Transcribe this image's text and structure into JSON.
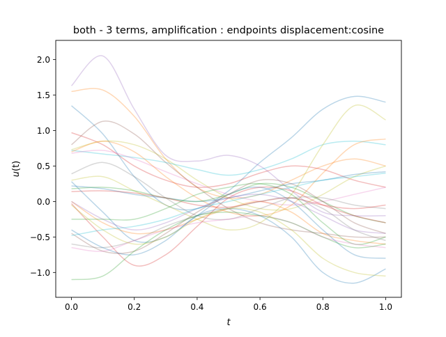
{
  "chart_data": {
    "type": "line",
    "title": "both - 3 terms, amplification : endpoints displacement:cosine",
    "xlabel_base": "t",
    "ylabel_base": "u",
    "ylabel_arg": "(t)",
    "xlim": [
      -0.05,
      1.05
    ],
    "ylim": [
      -1.35,
      2.27
    ],
    "xticks": [
      0.0,
      0.2,
      0.4,
      0.6,
      0.8,
      1.0
    ],
    "xtick_labels": [
      "0.0",
      "0.2",
      "0.4",
      "0.6",
      "0.8",
      "1.0"
    ],
    "yticks": [
      -1.0,
      -0.5,
      0.0,
      0.5,
      1.0,
      1.5,
      2.0
    ],
    "ytick_labels": [
      "−1.0",
      "−0.5",
      "0.0",
      "0.5",
      "1.0",
      "1.5",
      "2.0"
    ],
    "grid": false,
    "legend": "none",
    "line_alpha": 0.3,
    "x": [
      0.0,
      0.1,
      0.2,
      0.3,
      0.4,
      0.5,
      0.6,
      0.7,
      0.8,
      0.9,
      1.0
    ],
    "series": [
      {
        "color": "#1f77b4",
        "values": [
          1.35,
          0.95,
          0.35,
          -0.05,
          -0.1,
          0.15,
          0.55,
          0.9,
          1.3,
          1.48,
          1.4
        ]
      },
      {
        "color": "#ff7f0e",
        "values": [
          1.55,
          1.57,
          1.2,
          0.6,
          0.2,
          0.05,
          0.1,
          0.3,
          0.5,
          0.6,
          0.5
        ]
      },
      {
        "color": "#9467bd",
        "values": [
          1.63,
          2.05,
          1.3,
          0.65,
          0.57,
          0.65,
          0.5,
          0.15,
          -0.15,
          -0.2,
          -0.2
        ]
      },
      {
        "color": "#d62728",
        "values": [
          0.97,
          0.8,
          0.5,
          0.3,
          0.2,
          0.25,
          0.4,
          0.5,
          0.45,
          0.3,
          0.2
        ]
      },
      {
        "color": "#8c564b",
        "values": [
          0.8,
          1.13,
          0.95,
          0.55,
          0.2,
          -0.1,
          -0.3,
          -0.4,
          -0.45,
          -0.5,
          -0.5
        ]
      },
      {
        "color": "#bcbd22",
        "values": [
          0.73,
          0.85,
          0.8,
          0.6,
          0.3,
          0.05,
          -0.1,
          -0.1,
          0.1,
          0.35,
          0.5
        ]
      },
      {
        "color": "#17becf",
        "values": [
          0.72,
          0.67,
          0.62,
          0.55,
          0.45,
          0.37,
          0.45,
          0.6,
          0.8,
          0.85,
          0.8
        ]
      },
      {
        "color": "#e377c2",
        "values": [
          0.68,
          0.72,
          0.6,
          0.42,
          0.25,
          0.1,
          0.0,
          -0.05,
          0.0,
          0.1,
          0.2
        ]
      },
      {
        "color": "#ff7f0e",
        "values": [
          0.7,
          0.85,
          0.7,
          0.35,
          0.05,
          -0.15,
          -0.2,
          -0.05,
          0.4,
          0.8,
          0.88
        ]
      },
      {
        "color": "#7f7f7f",
        "values": [
          0.39,
          0.55,
          0.35,
          0.05,
          -0.2,
          -0.25,
          -0.1,
          0.05,
          0.05,
          -0.05,
          -0.1
        ]
      },
      {
        "color": "#bcbd22",
        "values": [
          0.3,
          0.35,
          0.15,
          -0.05,
          -0.25,
          -0.4,
          -0.3,
          0.1,
          0.8,
          1.35,
          1.15
        ]
      },
      {
        "color": "#1f77b4",
        "values": [
          0.22,
          0.18,
          0.1,
          0.05,
          0.0,
          0.05,
          0.15,
          0.25,
          0.3,
          0.38,
          0.42
        ]
      },
      {
        "color": "#2ca02c",
        "values": [
          0.18,
          0.2,
          0.15,
          0.05,
          0.0,
          0.1,
          0.25,
          0.2,
          0.0,
          -0.2,
          -0.3
        ]
      },
      {
        "color": "#d62728",
        "values": [
          0.14,
          0.15,
          0.12,
          0.05,
          -0.05,
          -0.08,
          0.0,
          0.05,
          -0.05,
          -0.1,
          -0.05
        ]
      },
      {
        "color": "#1f77b4",
        "values": [
          0.28,
          -0.15,
          -0.55,
          -0.5,
          -0.2,
          0.1,
          0.2,
          0.0,
          -0.4,
          -0.75,
          -0.8
        ]
      },
      {
        "color": "#ff7f0e",
        "values": [
          0.0,
          -0.3,
          -0.45,
          -0.4,
          -0.25,
          -0.1,
          0.0,
          -0.15,
          -0.45,
          -0.55,
          -0.6
        ]
      },
      {
        "color": "#9467bd",
        "values": [
          0.0,
          -0.25,
          -0.4,
          -0.3,
          -0.1,
          0.05,
          0.1,
          0.0,
          -0.2,
          -0.4,
          -0.45
        ]
      },
      {
        "color": "#2ca02c",
        "values": [
          -0.25,
          -0.25,
          -0.25,
          -0.1,
          0.1,
          0.2,
          0.25,
          0.1,
          -0.3,
          -0.6,
          -0.5
        ]
      },
      {
        "color": "#d62728",
        "values": [
          -0.03,
          -0.5,
          -0.9,
          -0.75,
          -0.35,
          0.05,
          0.2,
          0.15,
          -0.05,
          -0.2,
          -0.3
        ]
      },
      {
        "color": "#8c564b",
        "values": [
          -0.45,
          -0.7,
          -0.7,
          -0.45,
          -0.15,
          0.1,
          0.3,
          0.25,
          0.0,
          -0.3,
          -0.45
        ]
      },
      {
        "color": "#7f7f7f",
        "values": [
          -0.6,
          -0.65,
          -0.55,
          -0.35,
          -0.2,
          -0.1,
          0.0,
          0.05,
          -0.1,
          -0.4,
          -0.55
        ]
      },
      {
        "color": "#e377c2",
        "values": [
          -0.65,
          -0.7,
          -0.55,
          -0.4,
          -0.3,
          -0.25,
          -0.2,
          -0.3,
          -0.5,
          -0.6,
          -0.65
        ]
      },
      {
        "color": "#17becf",
        "values": [
          -0.48,
          -0.4,
          -0.35,
          -0.25,
          -0.1,
          0.0,
          0.1,
          0.2,
          0.3,
          0.35,
          0.4
        ]
      },
      {
        "color": "#1f77b4",
        "values": [
          -0.4,
          -0.65,
          -0.75,
          -0.55,
          -0.2,
          -0.1,
          -0.2,
          -0.5,
          -1.0,
          -1.15,
          -0.95
        ]
      },
      {
        "color": "#2ca02c",
        "values": [
          -1.1,
          -1.05,
          -0.7,
          -0.4,
          -0.2,
          -0.15,
          -0.2,
          -0.3,
          -0.5,
          -0.65,
          -0.6
        ]
      },
      {
        "color": "#bcbd22",
        "values": [
          -0.05,
          -0.4,
          -0.6,
          -0.5,
          -0.25,
          -0.1,
          -0.15,
          -0.4,
          -0.8,
          -1.0,
          -1.05
        ]
      }
    ]
  }
}
